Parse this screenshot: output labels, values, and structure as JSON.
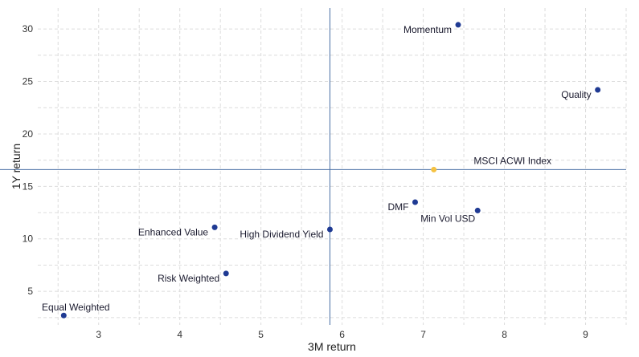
{
  "chart_data": {
    "type": "scatter",
    "xlabel": "3M return",
    "ylabel": "1Y return",
    "xlim": [
      2.25,
      9.5
    ],
    "ylim": [
      1.8,
      32
    ],
    "xticks": [
      3,
      4,
      5,
      6,
      7,
      8,
      9
    ],
    "yticks": [
      5,
      10,
      15,
      20,
      25,
      30
    ],
    "grid": true,
    "reference_lines": {
      "x": 5.85,
      "y": 16.6,
      "color": "#4a6fa5"
    },
    "points": [
      {
        "label": "Momentum",
        "x": 7.43,
        "y": 30.4,
        "color": "#1f3a93",
        "label_pos": "left"
      },
      {
        "label": "Quality",
        "x": 9.15,
        "y": 24.2,
        "color": "#1f3a93",
        "label_pos": "left"
      },
      {
        "label": "MSCI ACWI Index",
        "x": 7.13,
        "y": 16.6,
        "color": "#f5c242",
        "label_pos": "above-right"
      },
      {
        "label": "DMF",
        "x": 6.9,
        "y": 13.5,
        "color": "#1f3a93",
        "label_pos": "left"
      },
      {
        "label": "Min Vol USD",
        "x": 7.67,
        "y": 12.7,
        "color": "#1f3a93",
        "label_pos": "below-left"
      },
      {
        "label": "High Dividend Yield",
        "x": 5.85,
        "y": 10.9,
        "color": "#1f3a93",
        "label_pos": "left"
      },
      {
        "label": "Enhanced Value",
        "x": 4.43,
        "y": 11.1,
        "color": "#1f3a93",
        "label_pos": "left"
      },
      {
        "label": "Risk Weighted",
        "x": 4.57,
        "y": 6.7,
        "color": "#1f3a93",
        "label_pos": "left"
      },
      {
        "label": "Equal Weighted",
        "x": 2.57,
        "y": 2.7,
        "color": "#1f3a93",
        "label_pos": "above"
      }
    ]
  }
}
